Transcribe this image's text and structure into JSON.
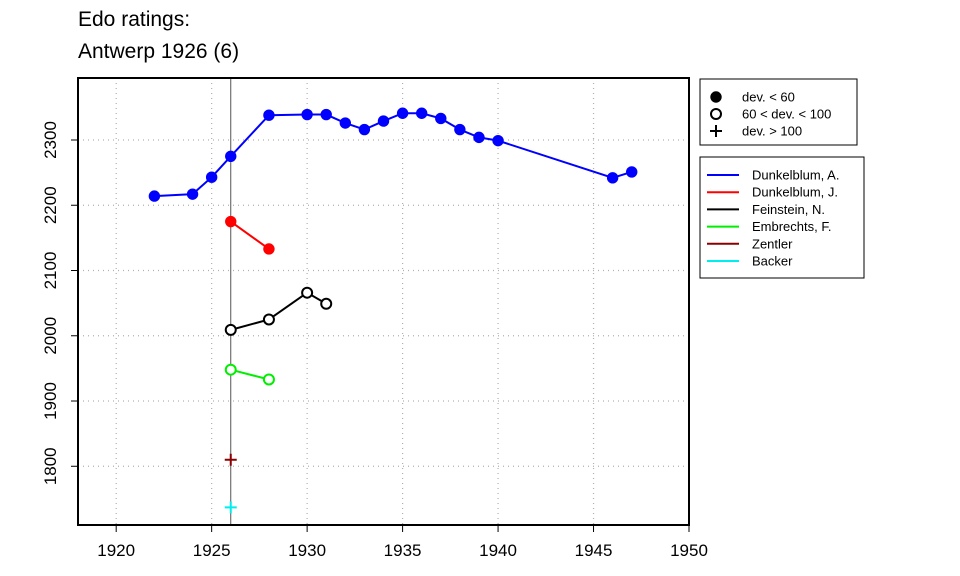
{
  "titles": {
    "line1": "Edo ratings:",
    "line2": "Antwerp 1926 (6)"
  },
  "chart_data": {
    "type": "line",
    "title": "Edo ratings: Antwerp 1926 (6)",
    "xlabel": "",
    "ylabel": "",
    "xlim": [
      1918,
      1950
    ],
    "ylim": [
      1710,
      2395
    ],
    "x_ticks": [
      1920,
      1925,
      1930,
      1935,
      1940,
      1945,
      1950
    ],
    "y_ticks": [
      1800,
      1900,
      2000,
      2100,
      2200,
      2300
    ],
    "grid": true,
    "reference_line_x": 1926,
    "marker_legend": [
      {
        "symbol": "filled-circle",
        "label": "dev. < 60"
      },
      {
        "symbol": "open-circle",
        "label": "60 < dev. < 100"
      },
      {
        "symbol": "plus",
        "label": "dev. > 100"
      }
    ],
    "legend_position": "right",
    "series": [
      {
        "name": "Dunkelblum, A.",
        "color": "#0000ff",
        "marker": "filled-circle",
        "x": [
          1922,
          1924,
          1925,
          1926,
          1928,
          1930,
          1931,
          1932,
          1933,
          1934,
          1935,
          1936,
          1937,
          1938,
          1939,
          1940,
          1946,
          1947
        ],
        "y": [
          2214,
          2217,
          2243,
          2275,
          2338,
          2339,
          2339,
          2326,
          2316,
          2329,
          2341,
          2341,
          2333,
          2316,
          2304,
          2299,
          2242,
          2251
        ]
      },
      {
        "name": "Dunkelblum, J.",
        "color": "#ff0000",
        "marker": "filled-circle",
        "x": [
          1926,
          1928
        ],
        "y": [
          2175,
          2133
        ]
      },
      {
        "name": "Feinstein, N.",
        "color": "#000000",
        "marker": "open-circle",
        "x": [
          1926,
          1928,
          1930,
          1931
        ],
        "y": [
          2009,
          2025,
          2066,
          2049
        ]
      },
      {
        "name": "Embrechts, F.",
        "color": "#00ee00",
        "marker": "open-circle",
        "x": [
          1926,
          1928
        ],
        "y": [
          1948,
          1933
        ]
      },
      {
        "name": "Zentler",
        "color": "#8b0000",
        "marker": "plus",
        "x": [
          1926
        ],
        "y": [
          1810
        ]
      },
      {
        "name": "Backer",
        "color": "#00eeee",
        "marker": "plus",
        "x": [
          1926
        ],
        "y": [
          1737
        ]
      }
    ]
  }
}
